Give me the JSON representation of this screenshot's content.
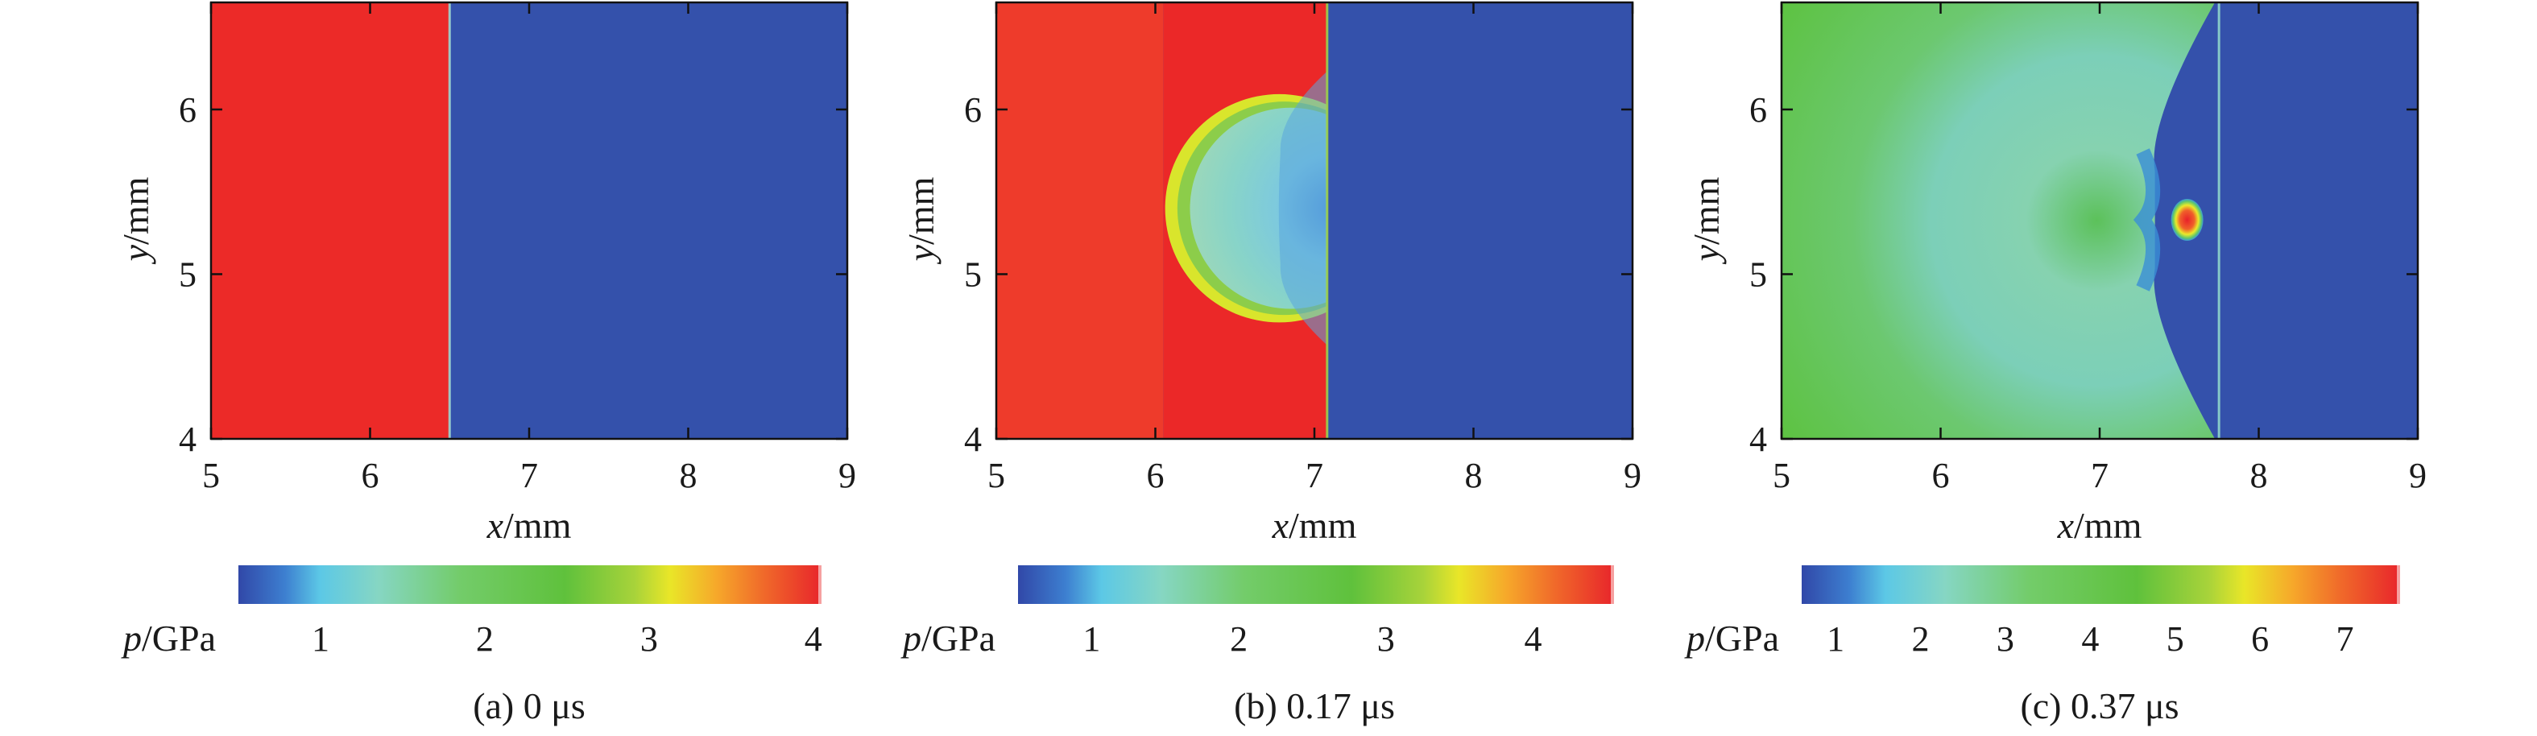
{
  "chart_data": [
    {
      "type": "heatmap",
      "caption": "(a) 0 μs",
      "xlabel_var": "x",
      "xlabel_unit": "/mm",
      "ylabel_var": "y",
      "ylabel_unit": "/mm",
      "xlim": [
        5,
        9
      ],
      "ylim": [
        4,
        6.65
      ],
      "xticks": [
        "5",
        "6",
        "7",
        "8",
        "9"
      ],
      "yticks": [
        "4",
        "5",
        "6"
      ],
      "field": {
        "background_color": "#3451ab",
        "regions": [
          {
            "kind": "rect",
            "x0": 5,
            "x1": 6.5,
            "y0": 4,
            "y1": 6.65,
            "color": "#ec2a28"
          }
        ],
        "interfaces": [
          {
            "x": 6.5,
            "color": "#9fd6cf"
          }
        ]
      },
      "colorbar": {
        "label_var": "p",
        "label_unit": "/GPa",
        "range": [
          0.5,
          4.05
        ],
        "ticks": [
          "1",
          "2",
          "3",
          "4"
        ]
      }
    },
    {
      "type": "heatmap",
      "caption": "(b) 0.17 μs",
      "xlabel_var": "x",
      "xlabel_unit": "/mm",
      "ylabel_var": "y",
      "ylabel_unit": "/mm",
      "xlim": [
        5,
        9
      ],
      "ylim": [
        4,
        6.65
      ],
      "xticks": [
        "5",
        "6",
        "7",
        "8",
        "9"
      ],
      "yticks": [
        "4",
        "5",
        "6"
      ],
      "field": {
        "background_color": "#3451ab",
        "regions": [
          {
            "kind": "rect",
            "x0": 5,
            "x1": 6.05,
            "y0": 4,
            "y1": 6.65,
            "color": "#ee3b2b"
          },
          {
            "kind": "rect",
            "x0": 6.05,
            "x1": 7.08,
            "y0": 4,
            "y1": 6.65,
            "color": "#eb2828"
          },
          {
            "kind": "crescent",
            "center": [
              6.85,
              5.4
            ],
            "radii": [
              0.62,
              0.78
            ],
            "color": "#8fd6cc"
          }
        ],
        "interfaces": [
          {
            "x": 7.08,
            "color": "#9fd24a"
          }
        ]
      },
      "colorbar": {
        "label_var": "p",
        "label_unit": "/GPa",
        "range": [
          0.5,
          4.55
        ],
        "ticks": [
          "1",
          "2",
          "3",
          "4"
        ]
      }
    },
    {
      "type": "heatmap",
      "caption": "(c) 0.37 μs",
      "xlabel_var": "x",
      "xlabel_unit": "/mm",
      "ylabel_var": "y",
      "ylabel_unit": "/mm",
      "xlim": [
        5,
        9
      ],
      "ylim": [
        4,
        6.65
      ],
      "xticks": [
        "5",
        "6",
        "7",
        "8",
        "9"
      ],
      "yticks": [
        "4",
        "5",
        "6"
      ],
      "field": {
        "background_color": "#3451ab",
        "regions": [
          {
            "kind": "rect",
            "x0": 5,
            "x1": 7.75,
            "y0": 4,
            "y1": 6.65,
            "color": "#62c34a"
          },
          {
            "kind": "hotspot",
            "center": [
              7.55,
              5.33
            ],
            "color": "#e8262a"
          }
        ],
        "interfaces": [
          {
            "x": 7.75,
            "color": "#8fd6cc"
          }
        ]
      },
      "colorbar": {
        "label_var": "p",
        "label_unit": "/GPa",
        "range": [
          0.6,
          7.65
        ],
        "ticks": [
          "1",
          "2",
          "3",
          "4",
          "5",
          "6",
          "7"
        ]
      }
    }
  ]
}
